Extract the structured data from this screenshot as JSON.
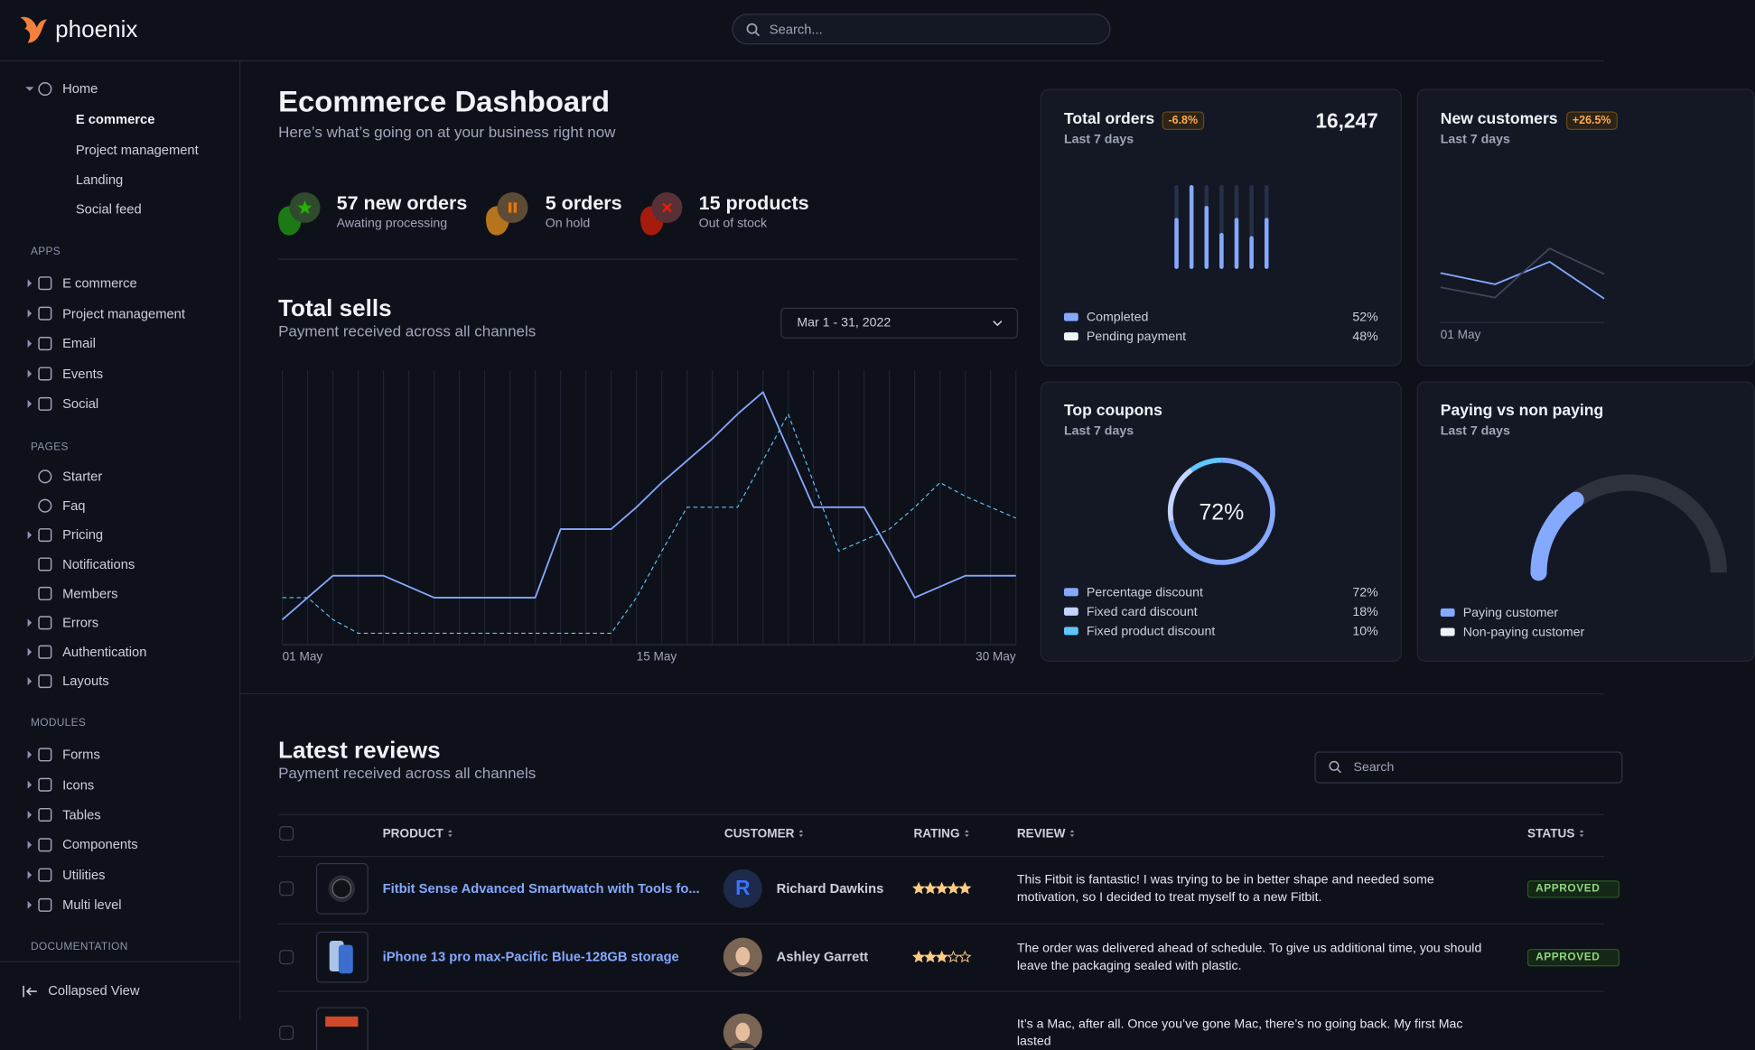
{
  "header": {
    "logo": "phoenix",
    "search_placeholder": "Search..."
  },
  "sidebar": {
    "home": {
      "label": "Home",
      "items": [
        "E commerce",
        "Project management",
        "Landing",
        "Social feed"
      ]
    },
    "sections": [
      {
        "title": "APPS",
        "items": [
          "E commerce",
          "Project management",
          "Email",
          "Events",
          "Social"
        ]
      },
      {
        "title": "PAGES",
        "items": [
          "Starter",
          "Faq",
          "Pricing",
          "Notifications",
          "Members",
          "Errors",
          "Authentication",
          "Layouts"
        ]
      },
      {
        "title": "MODULES",
        "items": [
          "Forms",
          "Icons",
          "Tables",
          "Components",
          "Utilities",
          "Multi level"
        ]
      },
      {
        "title": "DOCUMENTATION"
      }
    ],
    "collapse_label": "Collapsed View"
  },
  "page": {
    "title": "Ecommerce Dashboard",
    "subtitle": "Here’s what’s going on at your business right now"
  },
  "stats": [
    {
      "value": "57 new orders",
      "label": "Awating processing"
    },
    {
      "value": "5 orders",
      "label": "On hold"
    },
    {
      "value": "15 products",
      "label": "Out of stock"
    }
  ],
  "total_sells": {
    "type": "line",
    "title": "Total sells",
    "subtitle": "Payment received across all channels",
    "date_range": "Mar 1 - 31, 2022",
    "categories": [
      "01 May",
      null,
      null,
      null,
      null,
      null,
      null,
      null,
      null,
      null,
      null,
      null,
      null,
      null,
      "15 May",
      null,
      null,
      null,
      null,
      null,
      null,
      null,
      null,
      null,
      null,
      null,
      null,
      null,
      null,
      "30 May"
    ],
    "ylim": [
      0,
      100
    ],
    "grid": true,
    "series": [
      {
        "color": "#85a9ff",
        "values": [
          9,
          17,
          25,
          25,
          25,
          21,
          17,
          17,
          17,
          17,
          17,
          42,
          42,
          42,
          50,
          59,
          67,
          75,
          84,
          92,
          71,
          50,
          50,
          50,
          34,
          17,
          21,
          25,
          25,
          25
        ]
      },
      {
        "color": "#60c6ff",
        "dashed": true,
        "values": [
          17,
          17,
          9,
          4,
          4,
          4,
          4,
          4,
          4,
          4,
          4,
          4,
          4,
          4,
          17,
          34,
          50,
          50,
          50,
          67,
          84,
          59,
          34,
          38,
          42,
          50,
          59,
          54,
          50,
          46
        ]
      }
    ]
  },
  "total_orders": {
    "type": "bar",
    "title": "Total orders",
    "change": "-6.8%",
    "subtitle": "Last 7 days",
    "total": "16,247",
    "values": [
      59,
      100,
      74,
      40,
      59,
      36,
      59
    ],
    "ylim": [
      0,
      100
    ],
    "color": "#85a9ff",
    "legend": [
      {
        "label": "Completed",
        "value": "52%",
        "color": "#85a9ff"
      },
      {
        "label": "Pending payment",
        "value": "48%",
        "color": "#eff2f6"
      }
    ]
  },
  "new_customers": {
    "type": "line",
    "title": "New customers",
    "change": "+26.5%",
    "subtitle": "Last 7 days",
    "categories": [
      "01 May",
      null,
      null,
      null
    ],
    "ylim": [
      0,
      115
    ],
    "series": [
      {
        "color": "#85a9ff",
        "values": [
          48,
          37,
          59,
          23
        ]
      },
      {
        "color": "#3e465b",
        "values": [
          34,
          24,
          72,
          47
        ]
      }
    ]
  },
  "top_coupons": {
    "type": "pie",
    "title": "Top coupons",
    "subtitle": "Last 7 days",
    "center_label": "72%",
    "categories": [
      "Percentage discount",
      "Fixed card discount",
      "Fixed product discount"
    ],
    "values": [
      72,
      18,
      10
    ],
    "value_labels": [
      "72%",
      "18%",
      "10%"
    ],
    "colors": [
      "#85a9ff",
      "#c5d3ff",
      "#60c6ff"
    ]
  },
  "paying": {
    "type": "gauge",
    "title": "Paying vs non paying",
    "subtitle": "Last 7 days",
    "categories": [
      "Paying customer",
      "Non-paying customer"
    ],
    "values": [
      30,
      70
    ],
    "colors": [
      "#85a9ff",
      "#eff2f6"
    ]
  },
  "reviews": {
    "title": "Latest reviews",
    "subtitle": "Payment received across all channels",
    "search_placeholder": "Search",
    "columns": [
      "PRODUCT",
      "CUSTOMER",
      "RATING",
      "REVIEW",
      "STATUS"
    ],
    "rows": [
      {
        "product": "Fitbit Sense Advanced Smartwatch with Tools fo...",
        "customer": "Richard Dawkins",
        "avatar_initial": "R",
        "rating": 5,
        "review": "This Fitbit is fantastic! I was trying to be in better shape and needed some motivation, so I decided to treat myself to a new Fitbit.",
        "status": "APPROVED"
      },
      {
        "product": "iPhone 13 pro max-Pacific Blue-128GB storage",
        "customer": "Ashley Garrett",
        "rating": 3,
        "review": "The order was delivered ahead of schedule. To give us additional time, you should leave the packaging sealed with plastic.",
        "status": "APPROVED"
      },
      {
        "review": "It’s a Mac, after all. Once you’ve gone Mac, there’s no going back. My first Mac lasted"
      }
    ]
  }
}
